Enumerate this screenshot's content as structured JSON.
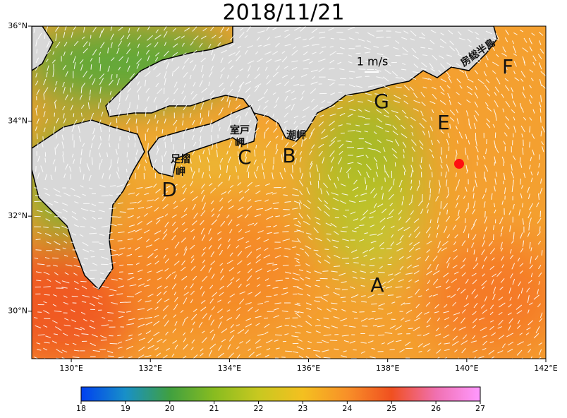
{
  "title": "2018/11/21",
  "map": {
    "xlim": [
      129,
      142
    ],
    "ylim": [
      29,
      36
    ],
    "xticks": [
      {
        "value": 130,
        "label": "130°E"
      },
      {
        "value": 132,
        "label": "132°E"
      },
      {
        "value": 134,
        "label": "134°E"
      },
      {
        "value": 136,
        "label": "136°E"
      },
      {
        "value": 138,
        "label": "138°E"
      },
      {
        "value": 140,
        "label": "140°E"
      },
      {
        "value": 142,
        "label": "142°E"
      }
    ],
    "yticks": [
      {
        "value": 30,
        "label": "30°N"
      },
      {
        "value": 32,
        "label": "32°N"
      },
      {
        "value": 34,
        "label": "34°N"
      },
      {
        "value": 36,
        "label": "36°N"
      }
    ]
  },
  "scale_label": "1 m/s",
  "place_names": [
    {
      "lines": [
        "室戸",
        "岬"
      ]
    },
    {
      "lines": [
        "潮岬"
      ]
    },
    {
      "lines": [
        "足摺",
        "岬"
      ]
    },
    {
      "lines": [
        "房総半島"
      ]
    }
  ],
  "point_labels": [
    "A",
    "B",
    "C",
    "D",
    "E",
    "F",
    "G"
  ],
  "colorbar": {
    "lim": [
      18,
      27
    ],
    "ticks": [
      18,
      19,
      20,
      21,
      22,
      23,
      24,
      25,
      26,
      27
    ],
    "colors": [
      "#0040f0",
      "#1890c8",
      "#40a040",
      "#88bc20",
      "#c8c820",
      "#f4c020",
      "#f89028",
      "#f05020",
      "#f070b0",
      "#ff99ff"
    ]
  }
}
